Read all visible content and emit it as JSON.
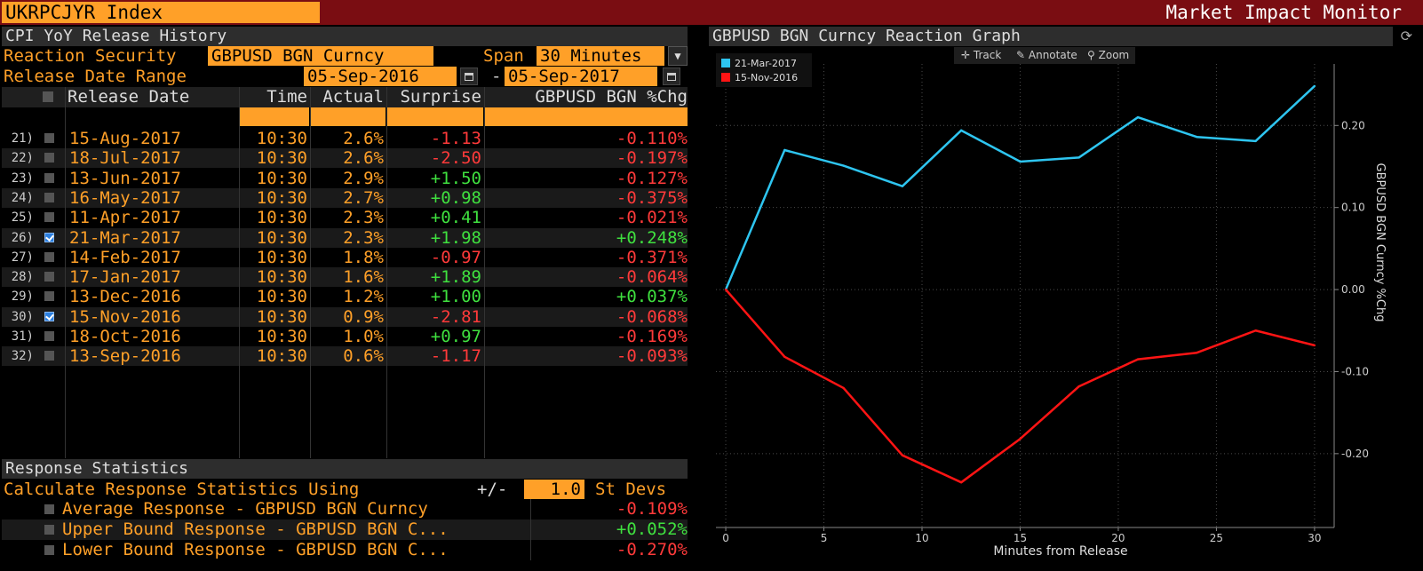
{
  "header": {
    "ticker": "UKRPCJYR Index",
    "app_title": "Market Impact Monitor"
  },
  "left": {
    "section_title": "CPI YoY Release History",
    "reaction_security_label": "Reaction Security",
    "reaction_security_value": "GBPUSD BGN Curncy",
    "span_label": "Span",
    "span_value": "30 Minutes",
    "date_range_label": "Release Date Range",
    "date_from": "05-Sep-2016",
    "date_sep": "-",
    "date_to": "05-Sep-2017"
  },
  "table": {
    "headers": {
      "date": "Release Date",
      "time": "Time",
      "actual": "Actual",
      "surprise": "Surprise",
      "chg": "GBPUSD BGN %Chg"
    },
    "rows": [
      {
        "num": "21)",
        "checked": false,
        "date": "15-Aug-2017",
        "time": "10:30",
        "actual": "2.6%",
        "surprise": "-1.13",
        "chg": "-0.110%"
      },
      {
        "num": "22)",
        "checked": false,
        "date": "18-Jul-2017",
        "time": "10:30",
        "actual": "2.6%",
        "surprise": "-2.50",
        "chg": "-0.197%"
      },
      {
        "num": "23)",
        "checked": false,
        "date": "13-Jun-2017",
        "time": "10:30",
        "actual": "2.9%",
        "surprise": "+1.50",
        "chg": "-0.127%"
      },
      {
        "num": "24)",
        "checked": false,
        "date": "16-May-2017",
        "time": "10:30",
        "actual": "2.7%",
        "surprise": "+0.98",
        "chg": "-0.375%"
      },
      {
        "num": "25)",
        "checked": false,
        "date": "11-Apr-2017",
        "time": "10:30",
        "actual": "2.3%",
        "surprise": "+0.41",
        "chg": "-0.021%"
      },
      {
        "num": "26)",
        "checked": true,
        "date": "21-Mar-2017",
        "time": "10:30",
        "actual": "2.3%",
        "surprise": "+1.98",
        "chg": "+0.248%"
      },
      {
        "num": "27)",
        "checked": false,
        "date": "14-Feb-2017",
        "time": "10:30",
        "actual": "1.8%",
        "surprise": "-0.97",
        "chg": "-0.371%"
      },
      {
        "num": "28)",
        "checked": false,
        "date": "17-Jan-2017",
        "time": "10:30",
        "actual": "1.6%",
        "surprise": "+1.89",
        "chg": "-0.064%"
      },
      {
        "num": "29)",
        "checked": false,
        "date": "13-Dec-2016",
        "time": "10:30",
        "actual": "1.2%",
        "surprise": "+1.00",
        "chg": "+0.037%"
      },
      {
        "num": "30)",
        "checked": true,
        "date": "15-Nov-2016",
        "time": "10:30",
        "actual": "0.9%",
        "surprise": "-2.81",
        "chg": "-0.068%"
      },
      {
        "num": "31)",
        "checked": false,
        "date": "18-Oct-2016",
        "time": "10:30",
        "actual": "1.0%",
        "surprise": "+0.97",
        "chg": "-0.169%"
      },
      {
        "num": "32)",
        "checked": false,
        "date": "13-Sep-2016",
        "time": "10:30",
        "actual": "0.6%",
        "surprise": "-1.17",
        "chg": "-0.093%"
      }
    ]
  },
  "stats": {
    "title": "Response Statistics",
    "calc_label": "Calculate Response Statistics Using",
    "plusminus": "+/-",
    "stdev_value": "1.0",
    "stdev_unit": "St Devs",
    "rows": [
      {
        "label": "Average Response - GBPUSD BGN Curncy",
        "value": "-0.109%"
      },
      {
        "label": "Upper Bound Response - GBPUSD BGN C...",
        "value": "+0.052%"
      },
      {
        "label": "Lower Bound Response - GBPUSD BGN C...",
        "value": "-0.270%"
      }
    ]
  },
  "chart_panel": {
    "title": "GBPUSD BGN Curncy Reaction Graph",
    "tools": {
      "track": "Track",
      "annotate": "Annotate",
      "zoom": "Zoom"
    }
  },
  "chart_data": {
    "type": "line",
    "xlabel": "Minutes from Release",
    "ylabel": "GBPUSD BGN Curncy %Chg",
    "xlim": [
      -0.5,
      31
    ],
    "ylim": [
      -0.29,
      0.275
    ],
    "xticks": [
      0,
      5,
      10,
      15,
      20,
      25,
      30
    ],
    "yticks": [
      0.2,
      0.1,
      0.0,
      -0.1,
      -0.2
    ],
    "ytick_labels": [
      "0.20",
      "0.10",
      "0.00",
      "-0.10",
      "-0.20"
    ],
    "grid": true,
    "legend": "top-left",
    "x": [
      0,
      3,
      6,
      9,
      12,
      15,
      18,
      21,
      24,
      27,
      30
    ],
    "series": [
      {
        "name": "21-Mar-2017",
        "color": "#2ec5f0",
        "values": [
          0.0,
          0.17,
          0.151,
          0.126,
          0.194,
          0.156,
          0.161,
          0.21,
          0.186,
          0.181,
          0.248
        ]
      },
      {
        "name": "15-Nov-2016",
        "color": "#ff1414",
        "values": [
          0.0,
          -0.082,
          -0.12,
          -0.202,
          -0.235,
          -0.182,
          -0.118,
          -0.085,
          -0.077,
          -0.05,
          -0.068
        ]
      }
    ]
  },
  "colors": {
    "accent": "#ffa028",
    "title_bar": "#7a0d12",
    "negative": "#ff3a3a",
    "positive": "#3fe03f"
  }
}
